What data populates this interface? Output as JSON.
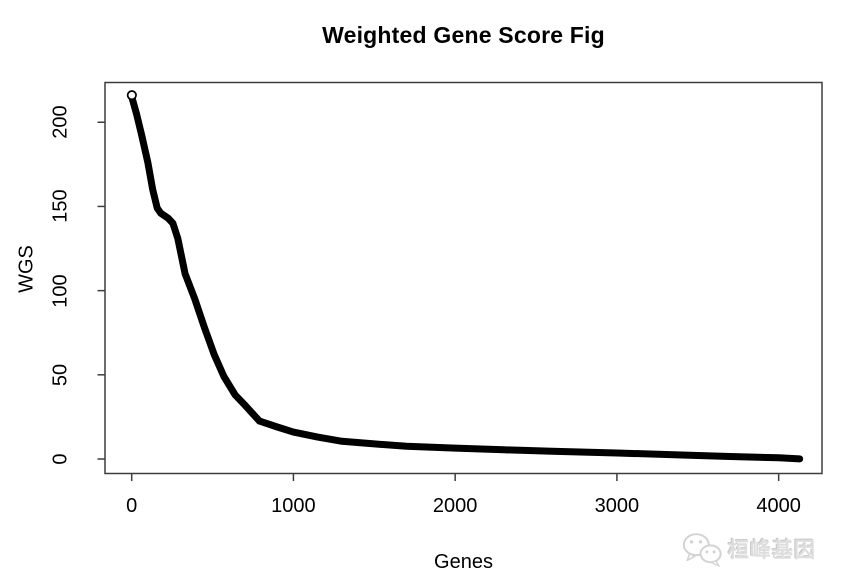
{
  "title": "Weighted Gene Score Fig",
  "watermark": {
    "text": "桓峰基因",
    "icon": "wechat-icon"
  },
  "colors": {
    "background": "#ffffff",
    "curve": "#000000",
    "axis": "#3d3d3d",
    "text": "#000000",
    "watermark_gray": "#d2d2d2"
  },
  "chart_data": {
    "type": "scatter",
    "title": "Weighted Gene Score Fig",
    "xlabel": "Genes",
    "ylabel": "WGS",
    "x_ticks": [
      0,
      1000,
      2000,
      3000,
      4000
    ],
    "y_ticks": [
      0,
      50,
      100,
      150,
      200
    ],
    "xlim": [
      -165,
      4268
    ],
    "ylim": [
      -8.6,
      223.6
    ],
    "grid": false,
    "legend": null,
    "marker": "open-circle-dense",
    "description": "Genes sorted by decreasing weighted gene score; ~4130 genes total",
    "points": {
      "x": [
        1,
        30,
        60,
        100,
        130,
        158,
        180,
        225,
        255,
        285,
        330,
        390,
        450,
        510,
        570,
        640,
        700,
        790,
        900,
        1000,
        1150,
        1300,
        1500,
        1700,
        2000,
        2300,
        2600,
        3000,
        3400,
        3700,
        4000,
        4130
      ],
      "y": [
        215,
        205,
        193,
        176,
        160,
        149,
        146,
        143,
        140,
        131,
        110,
        95,
        78,
        62,
        49,
        38,
        32,
        22.5,
        19,
        16,
        13,
        10.5,
        9,
        7.6,
        6.5,
        5.5,
        4.6,
        3.6,
        2.4,
        1.5,
        0.7,
        0.1
      ]
    }
  }
}
